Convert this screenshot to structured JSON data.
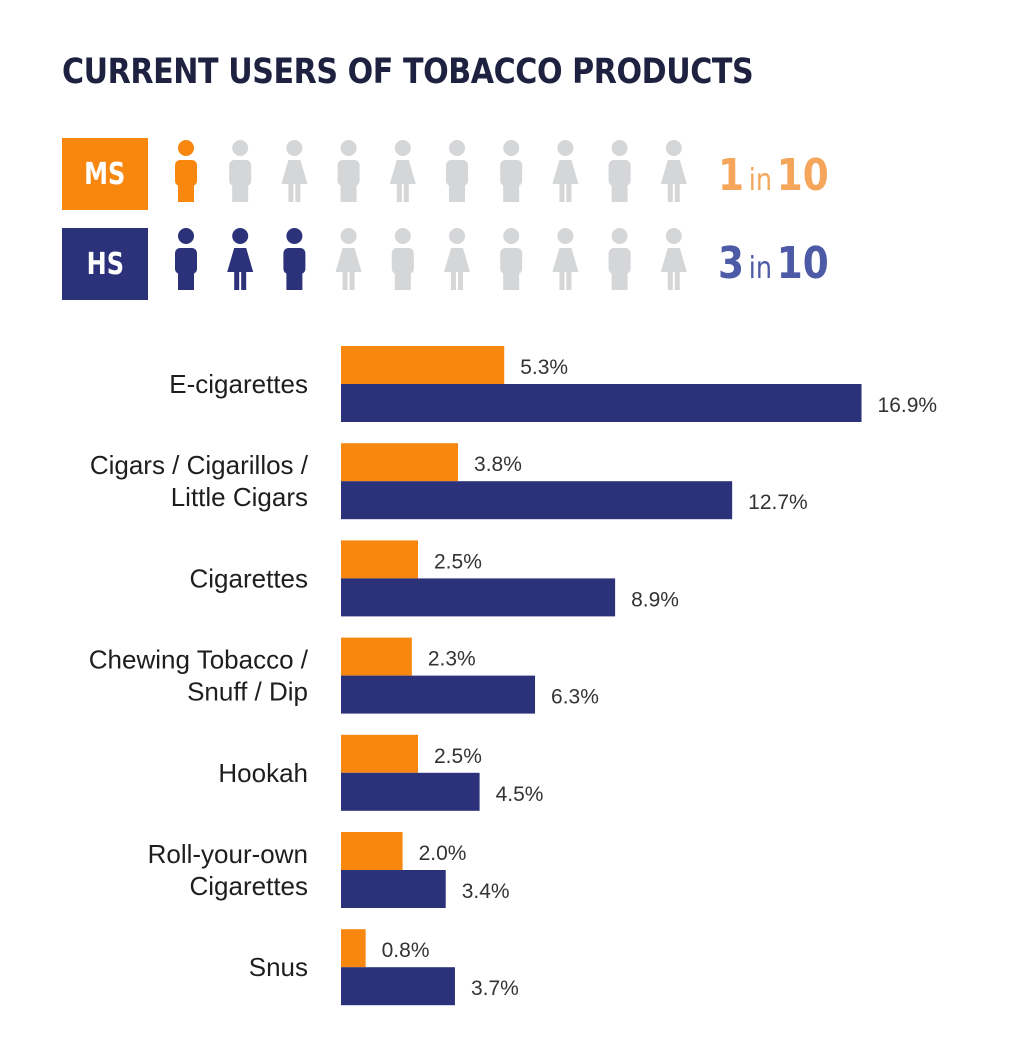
{
  "title": "CURRENT USERS OF TOBACCO PRODUCTS",
  "colors": {
    "ms": "#f7870f",
    "hs": "#2b327a",
    "inactive": "#d5d6d8",
    "ms_ratio": "#f5a65a",
    "hs_ratio": "#4d5aa6"
  },
  "groups": [
    {
      "label": "MS",
      "ratio_num": "1",
      "ratio_word": "in",
      "ratio_den": "10",
      "highlighted": 1,
      "total": 10
    },
    {
      "label": "HS",
      "ratio_num": "3",
      "ratio_word": "in",
      "ratio_den": "10",
      "highlighted": 3,
      "total": 10
    }
  ],
  "chart_data": {
    "type": "bar",
    "orientation": "horizontal",
    "categories": [
      [
        "E-cigarettes"
      ],
      [
        "Cigars / Cigarillos /",
        "Little Cigars"
      ],
      [
        "Cigarettes"
      ],
      [
        "Chewing Tobacco /",
        "Snuff / Dip"
      ],
      [
        "Hookah"
      ],
      [
        "Roll-your-own",
        "Cigarettes"
      ],
      [
        "Snus"
      ]
    ],
    "series": [
      {
        "name": "MS",
        "values": [
          5.3,
          3.8,
          2.5,
          2.3,
          2.5,
          2.0,
          0.8
        ],
        "labels": [
          "5.3%",
          "3.8%",
          "2.5%",
          "2.3%",
          "2.5%",
          "2.0%",
          "0.8%"
        ]
      },
      {
        "name": "HS",
        "values": [
          16.9,
          12.7,
          8.9,
          6.3,
          4.5,
          3.4,
          3.7
        ],
        "labels": [
          "16.9%",
          "12.7%",
          "8.9%",
          "6.3%",
          "4.5%",
          "3.4%",
          "3.7%"
        ]
      }
    ]
  }
}
